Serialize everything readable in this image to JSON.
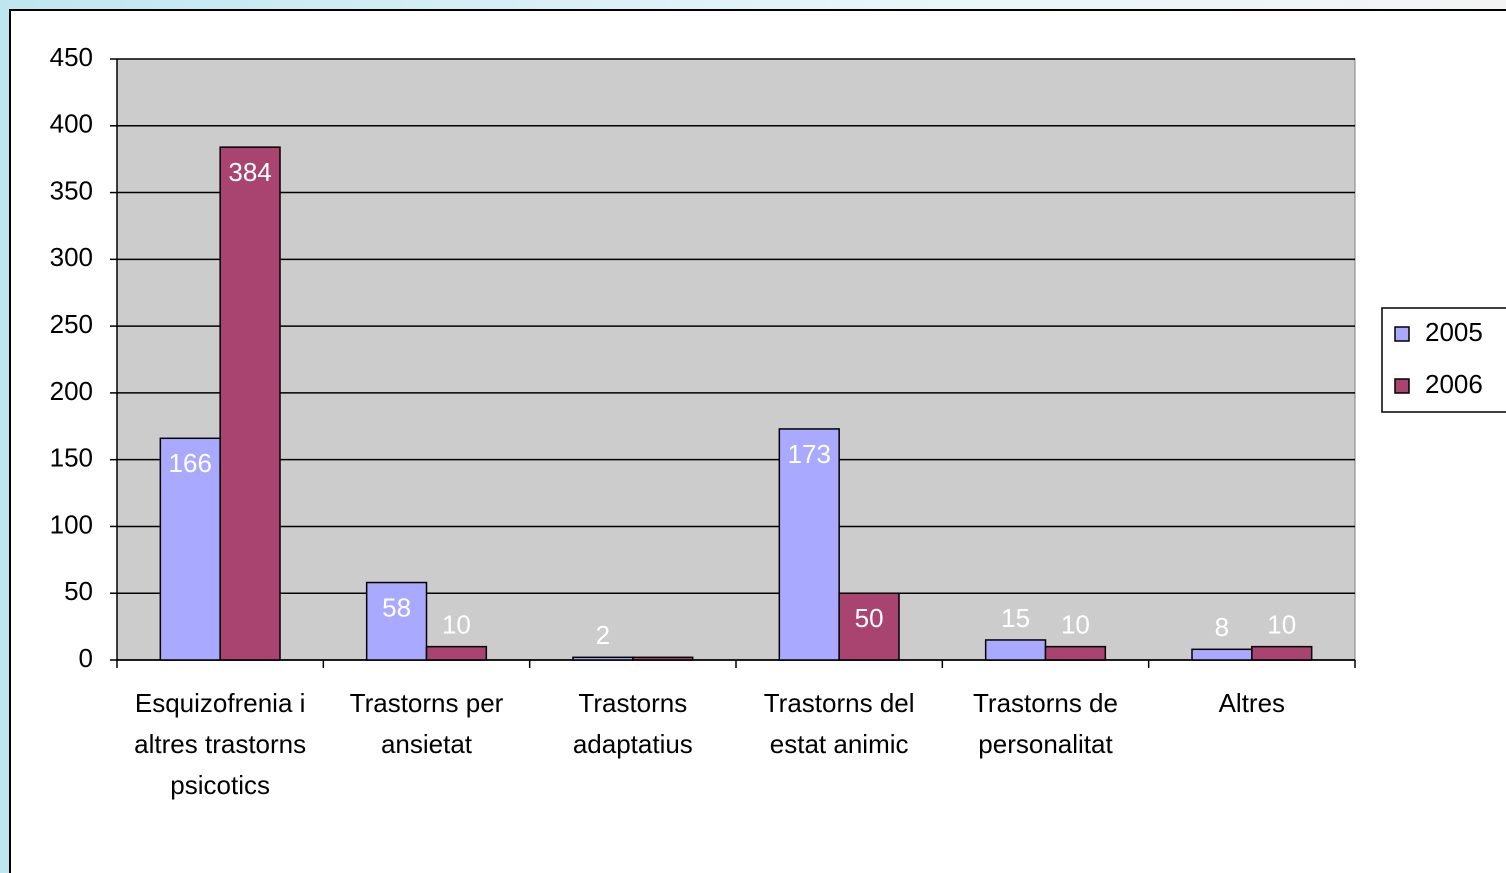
{
  "chart_data": {
    "type": "bar",
    "categories": [
      "Esquizofrenia i altres trastorns psicotics",
      "Trastorns per ansietat",
      "Trastorns adaptatius",
      "Trastorns del estat animic",
      "Trastorns de personalitat",
      "Altres"
    ],
    "series": [
      {
        "name": "2005",
        "color": "#a9a9ff",
        "values": [
          166,
          58,
          2,
          173,
          15,
          8
        ]
      },
      {
        "name": "2006",
        "color": "#a94470",
        "values": [
          384,
          10,
          2,
          50,
          10,
          10
        ],
        "value_labels": [
          "384",
          "10",
          null,
          "50",
          "10",
          "10"
        ]
      }
    ],
    "ylim": [
      0,
      450
    ],
    "yticks": [
      0,
      50,
      100,
      150,
      200,
      250,
      300,
      350,
      400,
      450
    ],
    "grid": true,
    "legend": "right"
  }
}
